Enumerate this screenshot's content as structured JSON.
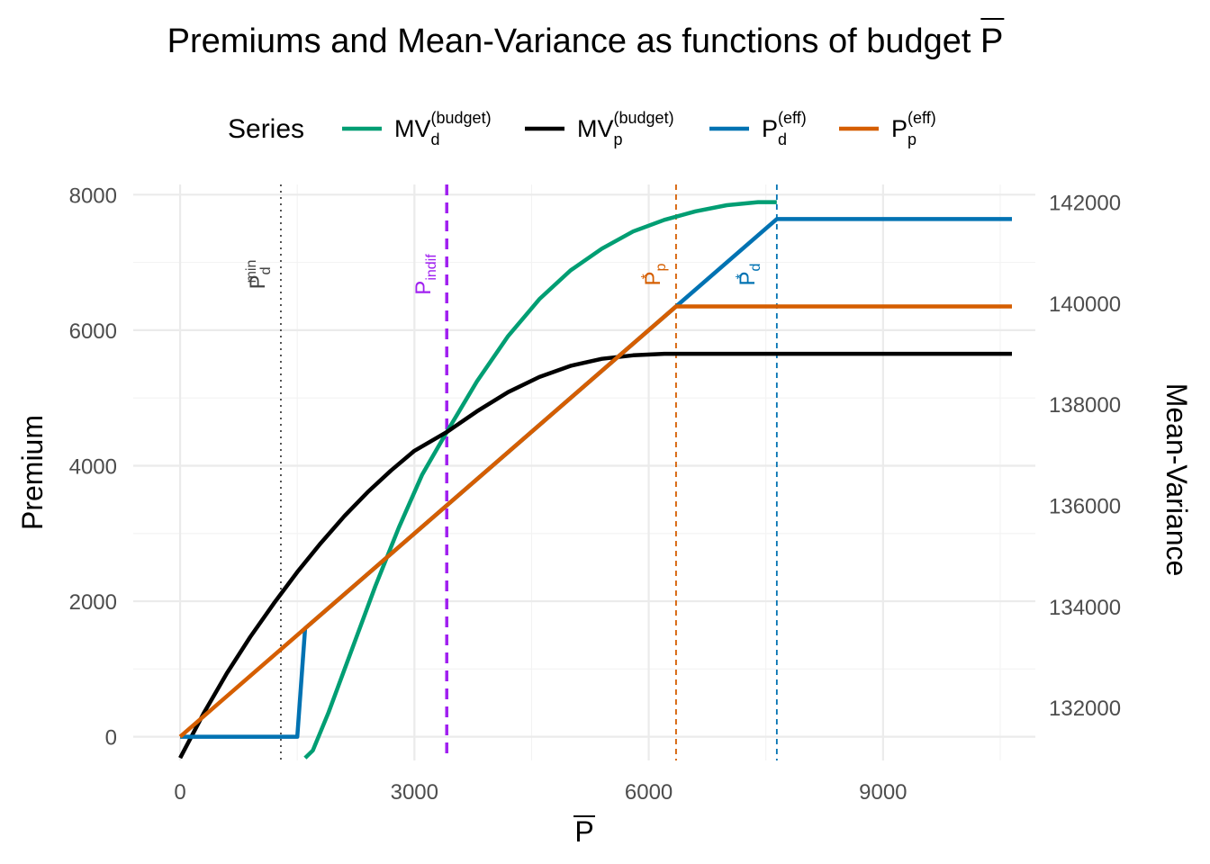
{
  "chart_data": {
    "type": "line",
    "title": "Premiums and Mean-Variance as functions of budget P",
    "xlabel": "P",
    "ylabel": "Premium",
    "y2label": "Mean-Variance",
    "xlim": [
      -600,
      10950
    ],
    "ylim": [
      -350,
      8150
    ],
    "y2lim": [
      130950,
      142350
    ],
    "x_ticks": [
      0,
      3000,
      6000,
      9000
    ],
    "x_tick_labels": [
      "0",
      "3000",
      "6000",
      "9000"
    ],
    "y_ticks": [
      0,
      2000,
      4000,
      6000,
      8000
    ],
    "y_tick_labels": [
      "0",
      "2000",
      "4000",
      "6000",
      "8000"
    ],
    "y2_ticks": [
      132000,
      134000,
      136000,
      138000,
      140000,
      142000
    ],
    "y2_tick_labels": [
      "132000",
      "134000",
      "136000",
      "138000",
      "140000",
      "142000"
    ],
    "legend": {
      "title": "Series",
      "position": "top",
      "entries": [
        {
          "base": "MV",
          "sub": "d",
          "sup": "(budget)",
          "color": "#009E73"
        },
        {
          "base": "MV",
          "sub": "p",
          "sup": "(budget)",
          "color": "#000000"
        },
        {
          "base": "P",
          "sub": "d",
          "sup": "(eff)",
          "color": "#0072B2"
        },
        {
          "base": "P",
          "sub": "p",
          "sup": "(eff)",
          "color": "#D55E00"
        }
      ]
    },
    "series": [
      {
        "name": "MV_d^(budget)",
        "axis": "right",
        "color": "#009E73",
        "x": [
          1600,
          1700,
          1900,
          2200,
          2500,
          2800,
          3100,
          3414,
          3800,
          4200,
          4600,
          5000,
          5400,
          5800,
          6200,
          6600,
          7000,
          7400,
          7640
        ],
        "y": [
          131000,
          131150,
          131900,
          133150,
          134400,
          135560,
          136610,
          137450,
          138450,
          139350,
          140080,
          140650,
          141080,
          141420,
          141650,
          141820,
          141940,
          142000,
          142000
        ]
      },
      {
        "name": "MV_p^(budget)",
        "axis": "right",
        "color": "#000000",
        "x": [
          0,
          300,
          600,
          900,
          1200,
          1500,
          1800,
          2100,
          2400,
          2700,
          3000,
          3414,
          3800,
          4200,
          4600,
          5000,
          5400,
          5800,
          6200,
          6350,
          10650
        ],
        "y": [
          131000,
          131880,
          132680,
          133400,
          134060,
          134680,
          135250,
          135780,
          136260,
          136690,
          137080,
          137450,
          137860,
          138240,
          138540,
          138760,
          138900,
          138970,
          139000,
          139000,
          139000
        ]
      },
      {
        "name": "P_d^(eff)",
        "axis": "left",
        "color": "#0072B2",
        "x": [
          0,
          1500,
          1600,
          1600,
          6350,
          7640,
          10650
        ],
        "y": [
          0,
          0,
          1600,
          1600,
          6350,
          7640,
          7640
        ]
      },
      {
        "name": "P_p^(eff)",
        "axis": "left",
        "color": "#D55E00",
        "x": [
          0,
          6350,
          10650
        ],
        "y": [
          0,
          6350,
          6350
        ]
      }
    ],
    "vlines": [
      {
        "x": 1290,
        "style": "dotted",
        "color": "#444444",
        "label": "P",
        "label_sub": "d",
        "label_sup": "min"
      },
      {
        "x": 3414,
        "style": "dashed",
        "color": "#A020F0",
        "label": "P",
        "label_sub": "indif",
        "label_sup": ""
      },
      {
        "x": 6350,
        "style": "dashed",
        "color": "#D55E00",
        "label": "P",
        "label_sub": "p",
        "label_sup": "*"
      },
      {
        "x": 7640,
        "style": "dashed",
        "color": "#0072B2",
        "label": "P",
        "label_sub": "d",
        "label_sup": "*"
      }
    ]
  }
}
